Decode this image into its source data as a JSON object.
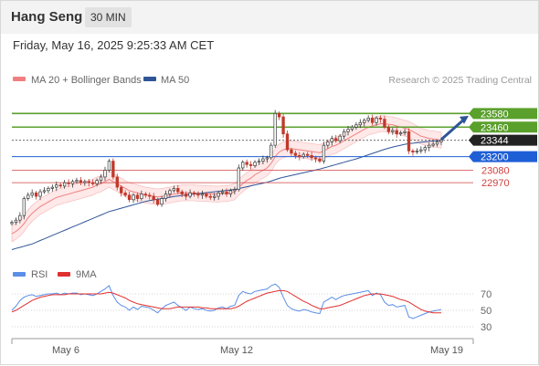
{
  "header": {
    "symbol": "Hang Seng",
    "interval": "30 MIN"
  },
  "datetime": "Friday, May 16, 2025 9:25:33 AM CET",
  "legend": {
    "bollinger": "MA 20 + Bollinger Bands",
    "ma50": "MA 50",
    "copyright": "Research © 2025 Trading Central",
    "rsi": "RSI",
    "ma9": "9MA"
  },
  "colors": {
    "up_candle": "#3a3a3a",
    "down_candle": "#c0392b",
    "bollinger": "#f08080",
    "band_fill": "#fde0e0",
    "ma50": "#2f5597",
    "resistance": "#5aa02c",
    "pivot": "#1f5fd6",
    "support": "#d04040",
    "rsi": "#5b8ee6",
    "rsi_ma": "#e03030",
    "arrow": "#2f5597"
  },
  "chart_data": [
    {
      "type": "candlestick",
      "title": "Hang Seng",
      "x_axis_labels": [
        "May 6",
        "May 12",
        "May 19"
      ],
      "ylim": [
        22400,
        23800
      ],
      "levels": [
        {
          "value": 23580,
          "label": "23580",
          "kind": "resistance"
        },
        {
          "value": 23460,
          "label": "23460",
          "kind": "resistance"
        },
        {
          "value": 23344,
          "label": "23344",
          "kind": "last"
        },
        {
          "value": 23200,
          "label": "23200",
          "kind": "pivot"
        },
        {
          "value": 23080,
          "label": "23080",
          "kind": "support"
        },
        {
          "value": 22970,
          "label": "22970",
          "kind": "support"
        }
      ],
      "forecast_arrow": {
        "from": 23350,
        "to": 23560
      },
      "close_series": [
        22620,
        22640,
        22680,
        22830,
        22860,
        22880,
        22850,
        22890,
        22900,
        22920,
        22930,
        22950,
        22940,
        22970,
        22960,
        22980,
        22990,
        22970,
        22980,
        22970,
        22960,
        22990,
        23020,
        23080,
        23160,
        23020,
        22930,
        22880,
        22860,
        22820,
        22860,
        22830,
        22870,
        22860,
        22850,
        22820,
        22780,
        22830,
        22870,
        22900,
        22920,
        22890,
        22870,
        22850,
        22880,
        22870,
        22860,
        22870,
        22850,
        22840,
        22850,
        22880,
        22890,
        22870,
        22900,
        22910,
        23100,
        23150,
        23130,
        23120,
        23150,
        23160,
        23180,
        23190,
        23300,
        23580,
        23550,
        23400,
        23260,
        23230,
        23210,
        23200,
        23220,
        23210,
        23190,
        23180,
        23160,
        23300,
        23330,
        23360,
        23340,
        23380,
        23420,
        23440,
        23460,
        23480,
        23500,
        23520,
        23540,
        23500,
        23540,
        23530,
        23460,
        23420,
        23430,
        23400,
        23410,
        23420,
        23250,
        23240,
        23250,
        23260,
        23280,
        23300,
        23310,
        23330,
        23344
      ],
      "ma20_series": [
        22520,
        22540,
        22570,
        22610,
        22660,
        22700,
        22730,
        22760,
        22780,
        22800,
        22820,
        22840,
        22850,
        22860,
        22870,
        22880,
        22890,
        22900,
        22910,
        22920,
        22930,
        22950,
        22960,
        22980,
        23000,
        22980,
        22960,
        22940,
        22920,
        22900,
        22890,
        22880,
        22870,
        22860,
        22855,
        22850,
        22845,
        22850,
        22855,
        22860,
        22870,
        22875,
        22880,
        22880,
        22880,
        22880,
        22878,
        22876,
        22874,
        22872,
        22870,
        22870,
        22872,
        22874,
        22880,
        22890,
        22930,
        22960,
        22990,
        23010,
        23040,
        23060,
        23080,
        23100,
        23140,
        23200,
        23240,
        23260,
        23270,
        23270,
        23265,
        23260,
        23255,
        23250,
        23245,
        23240,
        23235,
        23250,
        23270,
        23290,
        23300,
        23320,
        23340,
        23360,
        23380,
        23400,
        23420,
        23440,
        23460,
        23470,
        23480,
        23490,
        23490,
        23485,
        23480,
        23470,
        23460,
        23450,
        23440,
        23420,
        23400,
        23380,
        23370,
        23360,
        23355,
        23350,
        23345
      ],
      "ma50_series": [
        22380,
        22390,
        22400,
        22410,
        22420,
        22430,
        22445,
        22460,
        22475,
        22490,
        22505,
        22520,
        22535,
        22550,
        22565,
        22580,
        22595,
        22610,
        22625,
        22640,
        22655,
        22670,
        22685,
        22700,
        22715,
        22725,
        22735,
        22745,
        22755,
        22765,
        22775,
        22785,
        22795,
        22805,
        22812,
        22818,
        22824,
        22830,
        22836,
        22842,
        22848,
        22853,
        22858,
        22862,
        22866,
        22870,
        22874,
        22878,
        22882,
        22886,
        22890,
        22894,
        22898,
        22902,
        22906,
        22910,
        22918,
        22926,
        22934,
        22942,
        22950,
        22958,
        22966,
        22974,
        22984,
        22996,
        23008,
        23018,
        23026,
        23034,
        23042,
        23050,
        23058,
        23066,
        23074,
        23082,
        23090,
        23100,
        23110,
        23120,
        23130,
        23140,
        23150,
        23160,
        23170,
        23180,
        23192,
        23204,
        23216,
        23228,
        23240,
        23252,
        23264,
        23274,
        23284,
        23292,
        23300,
        23308,
        23314,
        23318,
        23322,
        23326,
        23330,
        23334,
        23338,
        23340,
        23342
      ]
    },
    {
      "type": "line",
      "title": "RSI",
      "ylim": [
        20,
        80
      ],
      "y_ticks": [
        70,
        50,
        30
      ],
      "series": [
        {
          "name": "RSI",
          "values": [
            50,
            55,
            62,
            66,
            68,
            69,
            67,
            68,
            69,
            70,
            70,
            71,
            69,
            71,
            70,
            71,
            71,
            69,
            70,
            69,
            68,
            70,
            73,
            76,
            80,
            68,
            60,
            56,
            54,
            50,
            54,
            51,
            55,
            54,
            53,
            50,
            47,
            52,
            56,
            58,
            60,
            56,
            53,
            50,
            54,
            52,
            51,
            52,
            50,
            49,
            50,
            53,
            54,
            52,
            55,
            56,
            68,
            73,
            71,
            70,
            73,
            74,
            75,
            76,
            80,
            82,
            78,
            66,
            56,
            52,
            50,
            49,
            51,
            50,
            48,
            47,
            46,
            60,
            63,
            66,
            63,
            66,
            68,
            69,
            70,
            71,
            72,
            73,
            74,
            68,
            71,
            69,
            60,
            56,
            57,
            54,
            55,
            56,
            42,
            40,
            42,
            44,
            46,
            48,
            49,
            50,
            51
          ]
        },
        {
          "name": "9MA",
          "values": [
            48,
            50,
            53,
            56,
            59,
            62,
            64,
            66,
            67,
            68,
            69,
            69,
            69,
            69,
            70,
            70,
            70,
            70,
            70,
            70,
            70,
            70,
            70,
            71,
            72,
            71,
            69,
            67,
            65,
            62,
            60,
            58,
            57,
            56,
            55,
            54,
            53,
            52,
            52,
            52,
            53,
            54,
            54,
            54,
            54,
            54,
            54,
            53,
            53,
            52,
            52,
            52,
            52,
            52,
            52,
            53,
            55,
            58,
            61,
            63,
            65,
            67,
            69,
            71,
            72,
            73,
            74,
            74,
            73,
            70,
            67,
            64,
            61,
            59,
            56,
            54,
            52,
            52,
            53,
            54,
            55,
            56,
            58,
            60,
            62,
            64,
            66,
            68,
            69,
            70,
            70,
            70,
            69,
            68,
            67,
            65,
            63,
            62,
            60,
            57,
            54,
            51,
            49,
            48,
            47,
            47,
            47
          ]
        }
      ]
    }
  ]
}
